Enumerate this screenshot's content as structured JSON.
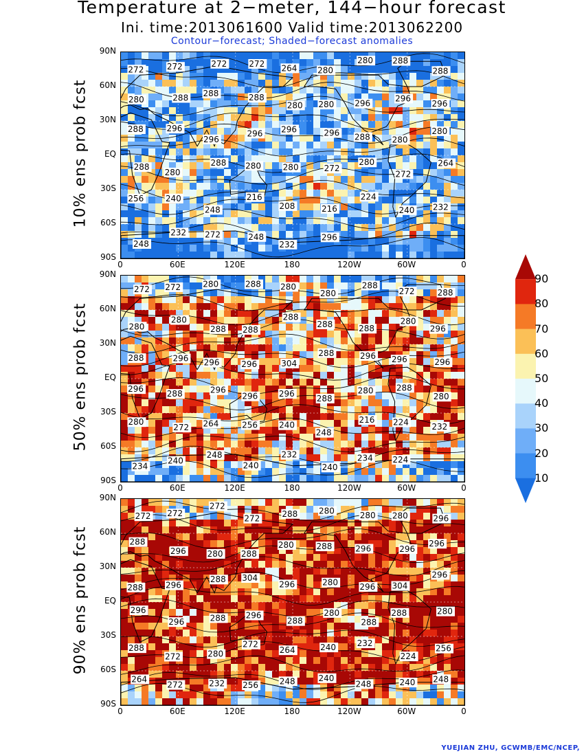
{
  "title": "Temperature at 2−meter, 144−hour forecast",
  "subtitle": "Ini. time:2013061600    Valid time:2013062200",
  "note": "Contour−forecast; Shaded−forecast anomalies",
  "credit": "YUEJIAN ZHU, GCWMB/EMC/NCEP,",
  "lat_ticks": [
    "90N",
    "60N",
    "30N",
    "EQ",
    "30S",
    "60S",
    "90S"
  ],
  "lon_ticks": [
    "0",
    "60E",
    "120E",
    "180",
    "120W",
    "60W",
    "0"
  ],
  "colorbar": {
    "levels": [
      "10",
      "20",
      "30",
      "40",
      "50",
      "60",
      "70",
      "80",
      "90"
    ],
    "colors": [
      "#1a6fe0",
      "#3c8ef0",
      "#6faef8",
      "#a9d3fb",
      "#e6f8fb",
      "#fbf3b0",
      "#fbc057",
      "#f57a26",
      "#e0260e",
      "#a80805"
    ]
  },
  "panels": [
    {
      "ylabel": "10% ens prob fcst",
      "contour_labels": [
        "272",
        "272",
        "272",
        "272",
        "264",
        "280",
        "280",
        "288",
        "288",
        "280",
        "288",
        "288",
        "288",
        "280",
        "280",
        "296",
        "296",
        "296",
        "288",
        "296",
        "296",
        "296",
        "296",
        "296",
        "288",
        "280",
        "280",
        "288",
        "280",
        "288",
        "280",
        "280",
        "272",
        "280",
        "272",
        "264",
        "256",
        "240",
        "248",
        "216",
        "208",
        "216",
        "224",
        "240",
        "232",
        "248",
        "232",
        "272",
        "248",
        "232",
        "296"
      ]
    },
    {
      "ylabel": "50% ens prob fcst",
      "contour_labels": [
        "272",
        "272",
        "280",
        "288",
        "280",
        "280",
        "288",
        "272",
        "288",
        "280",
        "280",
        "288",
        "288",
        "288",
        "288",
        "288",
        "280",
        "296",
        "288",
        "296",
        "296",
        "296",
        "304",
        "288",
        "296",
        "296",
        "296",
        "296",
        "288",
        "296",
        "296",
        "296",
        "288",
        "280",
        "288",
        "280",
        "280",
        "272",
        "264",
        "256",
        "240",
        "248",
        "216",
        "224",
        "232",
        "234",
        "240",
        "248",
        "240",
        "232",
        "240",
        "234",
        "224"
      ]
    },
    {
      "ylabel": "90% ens prob fcst",
      "contour_labels": [
        "272",
        "272",
        "272",
        "272",
        "288",
        "280",
        "280",
        "280",
        "296",
        "288",
        "296",
        "280",
        "288",
        "280",
        "288",
        "296",
        "296",
        "296",
        "288",
        "296",
        "288",
        "304",
        "296",
        "280",
        "296",
        "304",
        "296",
        "296",
        "296",
        "288",
        "296",
        "288",
        "280",
        "288",
        "288",
        "280",
        "288",
        "272",
        "280",
        "272",
        "264",
        "240",
        "232",
        "224",
        "256",
        "264",
        "272",
        "232",
        "256",
        "248",
        "240",
        "248",
        "240",
        "248",
        "296"
      ]
    }
  ]
}
